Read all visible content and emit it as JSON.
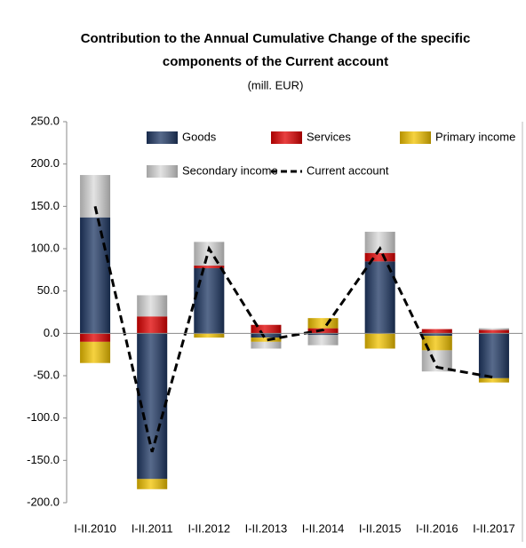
{
  "chart_data": {
    "type": "bar",
    "stacked": true,
    "title": [
      "Contribution  to the Annual Cumulative  Change of the specific",
      "components  of the Current account"
    ],
    "subtitle": "(mill. EUR)",
    "categories": [
      "I-II.2010",
      "I-II.2011",
      "I-II.2012",
      "I-II.2013",
      "I-II.2014",
      "I-II.2015",
      "I-II.2016",
      "I-II.2017"
    ],
    "series": [
      {
        "name": "Goods",
        "color": "#1f3864",
        "values": [
          137,
          -172,
          77,
          -5,
          -2,
          85,
          -3,
          -53
        ]
      },
      {
        "name": "Services",
        "color": "#e00000",
        "values": [
          -10,
          20,
          3,
          10,
          6,
          10,
          5,
          4
        ]
      },
      {
        "name": "Primary income",
        "color": "#f2c300",
        "values": [
          -25,
          -12,
          -5,
          -5,
          12,
          -18,
          -17,
          -5
        ]
      },
      {
        "name": "Secondary income",
        "color": "#d9d9d9",
        "values": [
          50,
          25,
          28,
          -8,
          -12,
          25,
          -25,
          2
        ]
      },
      {
        "name": "Current account",
        "type": "line",
        "color": "#000000",
        "values": [
          150,
          -140,
          100,
          -8,
          4,
          100,
          -40,
          -52
        ]
      }
    ],
    "ylim": [
      -200,
      250
    ],
    "yticks": [
      {
        "value": -200,
        "label": "-200.0"
      },
      {
        "value": -150,
        "label": "-150.0"
      },
      {
        "value": -100,
        "label": "-100.0"
      },
      {
        "value": -50,
        "label": "-50.0"
      },
      {
        "value": 0,
        "label": "0.0"
      },
      {
        "value": 50,
        "label": "50.0"
      },
      {
        "value": 100,
        "label": "100.0"
      },
      {
        "value": 150,
        "label": "150.0"
      },
      {
        "value": 200,
        "label": "200.0"
      },
      {
        "value": 250,
        "label": "250.0"
      }
    ],
    "grid": false
  }
}
